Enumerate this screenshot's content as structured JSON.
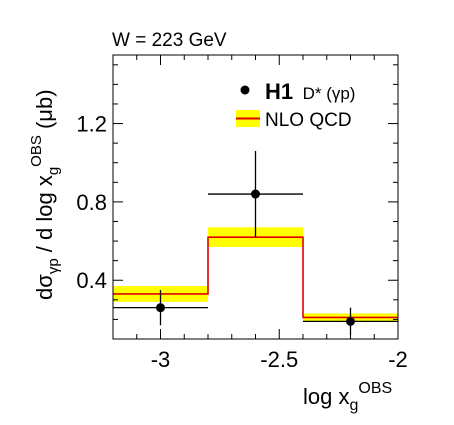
{
  "header": {
    "energy_label": "W = 223 GeV"
  },
  "legend": {
    "data_label_main": "H1",
    "data_label_sub": "D* (γp)",
    "theory_label": "NLO QCD"
  },
  "colors": {
    "band": "#ffff00",
    "line": "#e00000",
    "data": "#000000"
  },
  "chart_data": {
    "type": "line",
    "xlabel_main": "log x",
    "xlabel_sub": "g",
    "xlabel_sup": "OBS",
    "ylabel_main": "dσ",
    "ylabel_sub": "γp",
    "ylabel_rest": " / d log x",
    "ylabel_sub2": "g",
    "ylabel_sup": "OBS",
    "ylabel_unit": " (μb)",
    "xlim": [
      -3.2,
      -2.0
    ],
    "ylim": [
      0.1,
      1.55
    ],
    "x_ticks": [
      -3.0,
      -2.5,
      -2.0
    ],
    "x_tick_labels": [
      "-3",
      "-2.5",
      "-2"
    ],
    "y_ticks": [
      0.4,
      0.8,
      1.2
    ],
    "y_tick_labels": [
      "0.4",
      "0.8",
      "1.2"
    ],
    "data": [
      {
        "x": -3.0,
        "y": 0.26,
        "xerr_low": -3.2,
        "xerr_high": -2.8,
        "yerr_low": 0.17,
        "yerr_high": 0.35
      },
      {
        "x": -2.6,
        "y": 0.84,
        "xerr_low": -2.8,
        "xerr_high": -2.4,
        "yerr_low": 0.62,
        "yerr_high": 1.06
      },
      {
        "x": -2.2,
        "y": 0.19,
        "xerr_low": -2.4,
        "xerr_high": -2.0,
        "yerr_low": 0.12,
        "yerr_high": 0.26
      }
    ],
    "nlo_bins": [
      {
        "x_low": -3.2,
        "x_high": -2.8,
        "central": 0.33,
        "band_low": 0.29,
        "band_high": 0.37
      },
      {
        "x_low": -2.8,
        "x_high": -2.4,
        "central": 0.62,
        "band_low": 0.57,
        "band_high": 0.67
      },
      {
        "x_low": -2.4,
        "x_high": -2.0,
        "central": 0.21,
        "band_low": 0.19,
        "band_high": 0.23
      }
    ]
  }
}
